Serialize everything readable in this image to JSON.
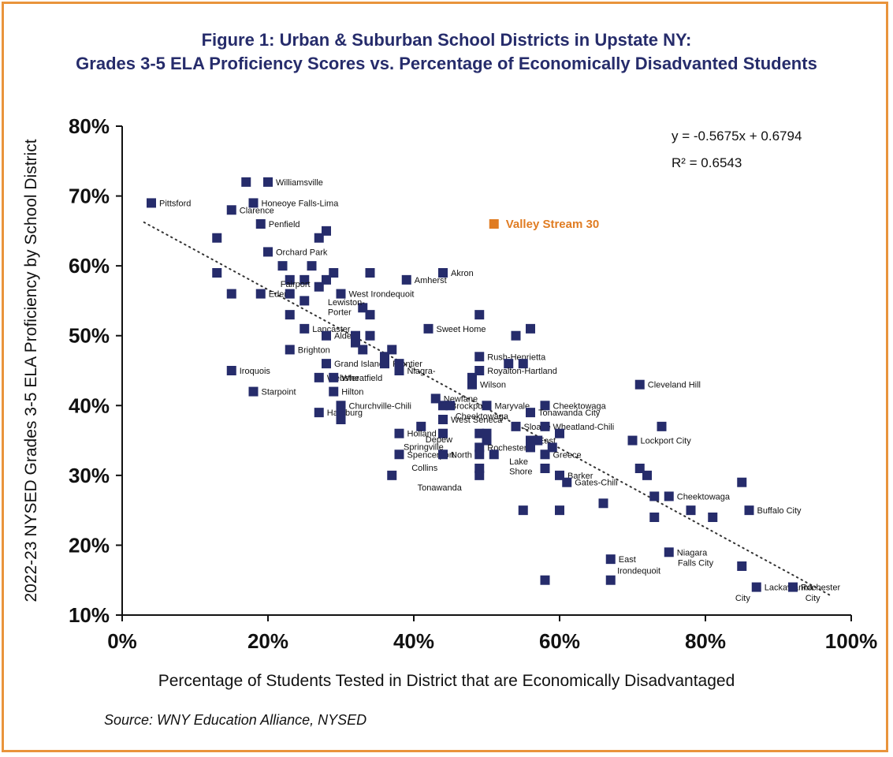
{
  "colors": {
    "frame": "#e9943c",
    "title": "#262c6b",
    "marker": "#262c6b",
    "highlight": "#e07c22"
  },
  "title": {
    "prefix": "Figure 1:",
    "line1": "Urban & Suburban School Districts in Upstate NY:",
    "line2": "Grades 3-5 ELA Proficiency Scores vs. Percentage of Economically Disadvanted Students"
  },
  "source": "Source: WNY Education Alliance, NYSED",
  "chart_data": {
    "type": "scatter",
    "xlabel": "Percentage of Students Tested in District that are Economically Disadvantaged",
    "ylabel": "2022-23 NYSED Grades 3-5 ELA Proficiency by School District",
    "xlim": [
      0,
      1
    ],
    "ylim": [
      0.1,
      0.8
    ],
    "x_ticks": [
      0,
      0.2,
      0.4,
      0.6,
      0.8,
      1.0
    ],
    "x_tick_labels": [
      "0%",
      "20%",
      "40%",
      "60%",
      "80%",
      "100%"
    ],
    "y_ticks": [
      0.1,
      0.2,
      0.3,
      0.4,
      0.5,
      0.6,
      0.7,
      0.8
    ],
    "y_tick_labels": [
      "10%",
      "20%",
      "30%",
      "40%",
      "50%",
      "60%",
      "70%",
      "80%"
    ],
    "grid": false,
    "trendline": {
      "slope": -0.5675,
      "intercept": 0.6794,
      "x_range": [
        0.03,
        0.97
      ],
      "style": "dotted"
    },
    "equation": "y = -0.5675x + 0.6794",
    "r_squared": "R² = 0.6543",
    "highlight": {
      "label": "Valley Stream 30",
      "x": 0.51,
      "y": 0.66
    },
    "points": [
      {
        "x": 0.04,
        "y": 0.69,
        "label": "Pittsford"
      },
      {
        "x": 0.15,
        "y": 0.68,
        "label": "Clarence"
      },
      {
        "x": 0.17,
        "y": 0.72,
        "label": ""
      },
      {
        "x": 0.2,
        "y": 0.72,
        "label": "Williamsville"
      },
      {
        "x": 0.18,
        "y": 0.69,
        "label": "Honeoye Falls-Lima"
      },
      {
        "x": 0.19,
        "y": 0.66,
        "label": "Penfield"
      },
      {
        "x": 0.13,
        "y": 0.64,
        "label": ""
      },
      {
        "x": 0.27,
        "y": 0.64,
        "label": ""
      },
      {
        "x": 0.28,
        "y": 0.65,
        "label": ""
      },
      {
        "x": 0.2,
        "y": 0.62,
        "label": "Orchard Park"
      },
      {
        "x": 0.13,
        "y": 0.59,
        "label": ""
      },
      {
        "x": 0.22,
        "y": 0.6,
        "label": ""
      },
      {
        "x": 0.26,
        "y": 0.6,
        "label": ""
      },
      {
        "x": 0.23,
        "y": 0.58,
        "label": ""
      },
      {
        "x": 0.25,
        "y": 0.58,
        "label": ""
      },
      {
        "x": 0.28,
        "y": 0.58,
        "label": ""
      },
      {
        "x": 0.29,
        "y": 0.59,
        "label": ""
      },
      {
        "x": 0.34,
        "y": 0.59,
        "label": ""
      },
      {
        "x": 0.39,
        "y": 0.58,
        "label": "Amherst"
      },
      {
        "x": 0.44,
        "y": 0.59,
        "label": "Akron"
      },
      {
        "x": 0.15,
        "y": 0.56,
        "label": ""
      },
      {
        "x": 0.19,
        "y": 0.56,
        "label": "Eden"
      },
      {
        "x": 0.23,
        "y": 0.56,
        "label": ""
      },
      {
        "x": 0.27,
        "y": 0.57,
        "label": ""
      },
      {
        "x": 0.3,
        "y": 0.56,
        "label": "West Irondequoit"
      },
      {
        "x": 0.25,
        "y": 0.55,
        "label": ""
      },
      {
        "x": 0.23,
        "y": 0.53,
        "label": ""
      },
      {
        "x": 0.33,
        "y": 0.54,
        "label": ""
      },
      {
        "x": 0.34,
        "y": 0.53,
        "label": ""
      },
      {
        "x": 0.49,
        "y": 0.53,
        "label": ""
      },
      {
        "x": 0.25,
        "y": 0.51,
        "label": "Lancaster"
      },
      {
        "x": 0.42,
        "y": 0.51,
        "label": "Sweet Home"
      },
      {
        "x": 0.56,
        "y": 0.51,
        "label": ""
      },
      {
        "x": 0.54,
        "y": 0.5,
        "label": ""
      },
      {
        "x": 0.28,
        "y": 0.5,
        "label": "Alden"
      },
      {
        "x": 0.32,
        "y": 0.5,
        "label": ""
      },
      {
        "x": 0.34,
        "y": 0.5,
        "label": ""
      },
      {
        "x": 0.32,
        "y": 0.49,
        "label": ""
      },
      {
        "x": 0.33,
        "y": 0.48,
        "label": ""
      },
      {
        "x": 0.23,
        "y": 0.48,
        "label": "Brighton"
      },
      {
        "x": 0.37,
        "y": 0.48,
        "label": ""
      },
      {
        "x": 0.36,
        "y": 0.47,
        "label": ""
      },
      {
        "x": 0.49,
        "y": 0.47,
        "label": "Rush-Henrietta"
      },
      {
        "x": 0.28,
        "y": 0.46,
        "label": "Grand Island"
      },
      {
        "x": 0.36,
        "y": 0.46,
        "label": "Frontier"
      },
      {
        "x": 0.38,
        "y": 0.46,
        "label": ""
      },
      {
        "x": 0.53,
        "y": 0.46,
        "label": ""
      },
      {
        "x": 0.55,
        "y": 0.46,
        "label": ""
      },
      {
        "x": 0.15,
        "y": 0.45,
        "label": "Iroquois"
      },
      {
        "x": 0.38,
        "y": 0.45,
        "label": "Niagra-"
      },
      {
        "x": 0.49,
        "y": 0.45,
        "label": "Royalton-Hartland"
      },
      {
        "x": 0.27,
        "y": 0.44,
        "label": "Webster"
      },
      {
        "x": 0.29,
        "y": 0.44,
        "label": "Wheatfield"
      },
      {
        "x": 0.48,
        "y": 0.44,
        "label": ""
      },
      {
        "x": 0.48,
        "y": 0.43,
        "label": "Wilson"
      },
      {
        "x": 0.71,
        "y": 0.43,
        "label": "Cleveland Hill"
      },
      {
        "x": 0.18,
        "y": 0.42,
        "label": "Starpoint"
      },
      {
        "x": 0.29,
        "y": 0.42,
        "label": "Hilton"
      },
      {
        "x": 0.43,
        "y": 0.41,
        "label": "Newfane"
      },
      {
        "x": 0.3,
        "y": 0.4,
        "label": "Churchville-Chili"
      },
      {
        "x": 0.44,
        "y": 0.4,
        "label": "Brockport"
      },
      {
        "x": 0.45,
        "y": 0.4,
        "label": ""
      },
      {
        "x": 0.5,
        "y": 0.4,
        "label": "Maryvale"
      },
      {
        "x": 0.58,
        "y": 0.4,
        "label": "Cheektowaga"
      },
      {
        "x": 0.27,
        "y": 0.39,
        "label": "Hamburg"
      },
      {
        "x": 0.3,
        "y": 0.39,
        "label": ""
      },
      {
        "x": 0.56,
        "y": 0.39,
        "label": "Tonawanda City"
      },
      {
        "x": 0.3,
        "y": 0.38,
        "label": ""
      },
      {
        "x": 0.44,
        "y": 0.38,
        "label": "West Seneca"
      },
      {
        "x": 0.41,
        "y": 0.37,
        "label": ""
      },
      {
        "x": 0.54,
        "y": 0.37,
        "label": "Sloane"
      },
      {
        "x": 0.58,
        "y": 0.37,
        "label": "Wheatland-Chili"
      },
      {
        "x": 0.74,
        "y": 0.37,
        "label": ""
      },
      {
        "x": 0.38,
        "y": 0.36,
        "label": "Holland"
      },
      {
        "x": 0.44,
        "y": 0.36,
        "label": ""
      },
      {
        "x": 0.49,
        "y": 0.36,
        "label": ""
      },
      {
        "x": 0.5,
        "y": 0.36,
        "label": ""
      },
      {
        "x": 0.6,
        "y": 0.36,
        "label": ""
      },
      {
        "x": 0.5,
        "y": 0.35,
        "label": ""
      },
      {
        "x": 0.56,
        "y": 0.35,
        "label": "East"
      },
      {
        "x": 0.57,
        "y": 0.35,
        "label": ""
      },
      {
        "x": 0.7,
        "y": 0.35,
        "label": "Lockport City"
      },
      {
        "x": 0.49,
        "y": 0.34,
        "label": "Rochester"
      },
      {
        "x": 0.56,
        "y": 0.34,
        "label": ""
      },
      {
        "x": 0.59,
        "y": 0.34,
        "label": ""
      },
      {
        "x": 0.38,
        "y": 0.33,
        "label": "Spencerport"
      },
      {
        "x": 0.44,
        "y": 0.33,
        "label": "North"
      },
      {
        "x": 0.49,
        "y": 0.33,
        "label": ""
      },
      {
        "x": 0.51,
        "y": 0.33,
        "label": ""
      },
      {
        "x": 0.58,
        "y": 0.33,
        "label": "Greece"
      },
      {
        "x": 0.58,
        "y": 0.31,
        "label": ""
      },
      {
        "x": 0.49,
        "y": 0.31,
        "label": ""
      },
      {
        "x": 0.71,
        "y": 0.31,
        "label": ""
      },
      {
        "x": 0.37,
        "y": 0.3,
        "label": ""
      },
      {
        "x": 0.49,
        "y": 0.3,
        "label": ""
      },
      {
        "x": 0.6,
        "y": 0.3,
        "label": "Barker"
      },
      {
        "x": 0.72,
        "y": 0.3,
        "label": ""
      },
      {
        "x": 0.61,
        "y": 0.29,
        "label": "Gates-Chili"
      },
      {
        "x": 0.85,
        "y": 0.29,
        "label": ""
      },
      {
        "x": 0.73,
        "y": 0.27,
        "label": ""
      },
      {
        "x": 0.75,
        "y": 0.27,
        "label": "Cheektowaga"
      },
      {
        "x": 0.66,
        "y": 0.26,
        "label": ""
      },
      {
        "x": 0.55,
        "y": 0.25,
        "label": ""
      },
      {
        "x": 0.6,
        "y": 0.25,
        "label": ""
      },
      {
        "x": 0.78,
        "y": 0.25,
        "label": ""
      },
      {
        "x": 0.86,
        "y": 0.25,
        "label": "Buffalo City"
      },
      {
        "x": 0.73,
        "y": 0.24,
        "label": ""
      },
      {
        "x": 0.81,
        "y": 0.24,
        "label": ""
      },
      {
        "x": 0.75,
        "y": 0.19,
        "label": "Niagara"
      },
      {
        "x": 0.67,
        "y": 0.18,
        "label": "East"
      },
      {
        "x": 0.85,
        "y": 0.17,
        "label": ""
      },
      {
        "x": 0.58,
        "y": 0.15,
        "label": ""
      },
      {
        "x": 0.67,
        "y": 0.15,
        "label": ""
      },
      {
        "x": 0.87,
        "y": 0.14,
        "label": "Lackawanna"
      },
      {
        "x": 0.92,
        "y": 0.14,
        "label": "Rochester"
      }
    ],
    "extra_labels": [
      {
        "text": "Fairport",
        "x": 0.217,
        "y": 0.574
      },
      {
        "text": "Lewiston-",
        "x": 0.282,
        "y": 0.548
      },
      {
        "text": "Porter",
        "x": 0.282,
        "y": 0.534
      },
      {
        "text": "Cheektowaga",
        "x": 0.457,
        "y": 0.385
      },
      {
        "text": "Springville",
        "x": 0.386,
        "y": 0.341
      },
      {
        "text": "Depew",
        "x": 0.416,
        "y": 0.352
      },
      {
        "text": "Collins",
        "x": 0.397,
        "y": 0.311
      },
      {
        "text": "Tonawanda",
        "x": 0.405,
        "y": 0.283
      },
      {
        "text": "Lake",
        "x": 0.531,
        "y": 0.32
      },
      {
        "text": "Shore",
        "x": 0.531,
        "y": 0.306
      },
      {
        "text": "Irondequoit",
        "x": 0.679,
        "y": 0.164
      },
      {
        "text": "Falls City",
        "x": 0.762,
        "y": 0.175
      },
      {
        "text": "City",
        "x": 0.841,
        "y": 0.125
      },
      {
        "text": "City",
        "x": 0.937,
        "y": 0.125
      }
    ],
    "extra_label_texts": [
      "Fairport",
      "Lewiston-",
      "Porter",
      "Cheektowaga",
      "Springville",
      "Depew",
      "Collins",
      "Tonawanda",
      "Lake",
      "Shore",
      "Irondequoit",
      "Falls City",
      "City",
      "City"
    ]
  }
}
